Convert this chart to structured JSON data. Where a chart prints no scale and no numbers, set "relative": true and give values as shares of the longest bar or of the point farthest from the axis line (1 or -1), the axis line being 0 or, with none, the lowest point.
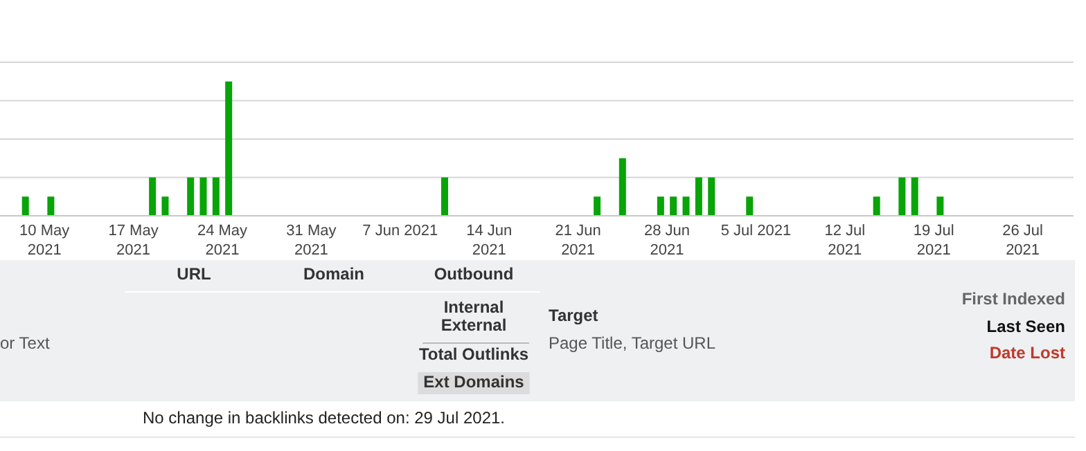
{
  "chart_data": {
    "type": "bar",
    "relative": true,
    "color": "#08a408",
    "grid": "y",
    "x": [
      "2021-05-08T12:00",
      "2021-05-10T12:00",
      "2021-05-18T12:00",
      "2021-05-19T12:00",
      "2021-05-21T12:00",
      "2021-05-22T12:00",
      "2021-05-23T12:00",
      "2021-05-24T12:00",
      "2021-06-10T12:00",
      "2021-06-22T12:00",
      "2021-06-24T12:00",
      "2021-06-27T12:00",
      "2021-06-28T12:00",
      "2021-06-29T12:00",
      "2021-06-30T12:00",
      "2021-07-01T12:00",
      "2021-07-04T12:00",
      "2021-07-14T12:00",
      "2021-07-16T12:00",
      "2021-07-17T12:00",
      "2021-07-19T12:00"
    ],
    "values": [
      0.143,
      0.143,
      0.286,
      0.143,
      0.286,
      0.286,
      0.286,
      1,
      0.286,
      0.143,
      0.429,
      0.143,
      0.143,
      0.143,
      0.286,
      0.286,
      0.143,
      0.143,
      0.286,
      0.286,
      0.143
    ],
    "xlim": [
      "2021-05-06T12:00",
      "2021-07-30T00:00"
    ],
    "xticks": [
      {
        "value": "2021-05-10",
        "label": "10 May\n2021"
      },
      {
        "value": "2021-05-17",
        "label": "17 May\n2021"
      },
      {
        "value": "2021-05-24",
        "label": "24 May\n2021"
      },
      {
        "value": "2021-05-31",
        "label": "31 May\n2021"
      },
      {
        "value": "2021-06-07",
        "label": "7 Jun 2021"
      },
      {
        "value": "2021-06-14",
        "label": "14 Jun\n2021"
      },
      {
        "value": "2021-06-21",
        "label": "21 Jun\n2021"
      },
      {
        "value": "2021-06-28",
        "label": "28 Jun\n2021"
      },
      {
        "value": "2021-07-05",
        "label": "5 Jul 2021"
      },
      {
        "value": "2021-07-12",
        "label": "12 Jul\n2021"
      },
      {
        "value": "2021-07-19",
        "label": "19 Jul\n2021"
      },
      {
        "value": "2021-07-26",
        "label": "26 Jul\n2021"
      }
    ],
    "annotations": [
      "URL",
      "Domain",
      "Outbound",
      "Internal\nExternal",
      "Total Outlinks",
      "Ext Domains",
      "Target",
      "Page Title, Target URL",
      "First Indexed",
      "Last Seen",
      "Date Lost",
      "or Text",
      "No change in backlinks detected on: 29 Jul 2021."
    ]
  }
}
